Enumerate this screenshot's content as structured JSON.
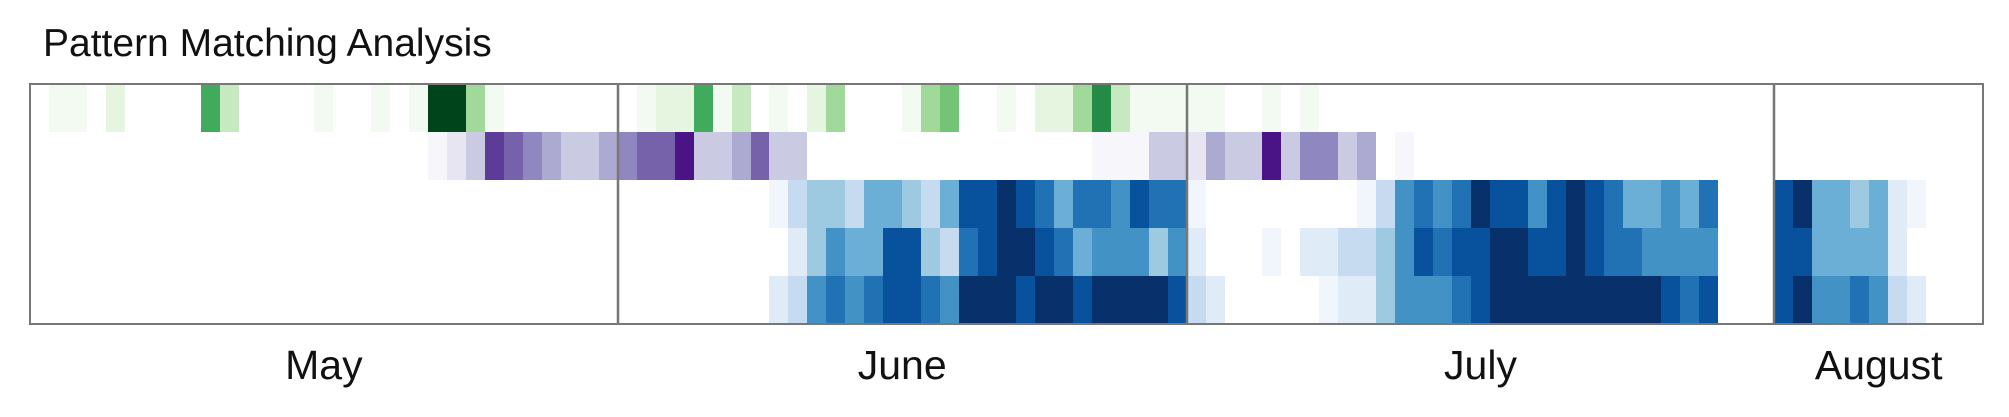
{
  "chart_data": {
    "type": "heatmap",
    "title": "Pattern Matching Analysis",
    "x_unit": "day",
    "x_labels": [
      "May",
      "June",
      "July",
      "August"
    ],
    "colormaps": {
      "green": [
        "#ffffff",
        "#f3faf1",
        "#e5f5e0",
        "#c7e9c0",
        "#a1d99b",
        "#74c476",
        "#41ab5d",
        "#238b45",
        "#006d2c",
        "#00441b"
      ],
      "purple": [
        "#ffffff",
        "#f7f6fb",
        "#e6e5f1",
        "#cbcae3",
        "#adaad1",
        "#8f88c0",
        "#7562ab",
        "#5c3c98",
        "#4a1486"
      ],
      "blue": [
        "#ffffff",
        "#f1f6fd",
        "#dfebf7",
        "#c6dbef",
        "#9ecae1",
        "#6baed6",
        "#4292c6",
        "#2171b5",
        "#08519c",
        "#08306b"
      ]
    },
    "rows": [
      {
        "colormap": "green",
        "range": [
          0,
          9
        ],
        "days": [
          {
            "day": "May 2",
            "value": 1
          },
          {
            "day": "May 3",
            "value": 1
          },
          {
            "day": "May 5",
            "value": 2
          },
          {
            "day": "May 10",
            "value": 6
          },
          {
            "day": "May 11",
            "value": 3
          },
          {
            "day": "May 16",
            "value": 1
          },
          {
            "day": "May 19",
            "value": 1
          },
          {
            "day": "May 21",
            "value": 1
          },
          {
            "day": "May 22",
            "value": 9
          },
          {
            "day": "May 23",
            "value": 9
          },
          {
            "day": "May 24",
            "value": 4
          },
          {
            "day": "May 25",
            "value": 1
          },
          {
            "day": "June 2",
            "value": 1
          },
          {
            "day": "June 3",
            "value": 2
          },
          {
            "day": "June 4",
            "value": 2
          },
          {
            "day": "June 5",
            "value": 6
          },
          {
            "day": "June 6",
            "value": 1
          },
          {
            "day": "June 7",
            "value": 3
          },
          {
            "day": "June 9",
            "value": 1
          },
          {
            "day": "June 11",
            "value": 2
          },
          {
            "day": "June 12",
            "value": 4
          },
          {
            "day": "June 16",
            "value": 1
          },
          {
            "day": "June 17",
            "value": 4
          },
          {
            "day": "June 18",
            "value": 5
          },
          {
            "day": "June 21",
            "value": 1
          },
          {
            "day": "June 23",
            "value": 2
          },
          {
            "day": "June 24",
            "value": 2
          },
          {
            "day": "June 25",
            "value": 4
          },
          {
            "day": "June 26",
            "value": 7
          },
          {
            "day": "June 27",
            "value": 3
          },
          {
            "day": "June 28",
            "value": 1
          },
          {
            "day": "June 29",
            "value": 1
          },
          {
            "day": "June 30",
            "value": 1
          },
          {
            "day": "July 1",
            "value": 1
          },
          {
            "day": "July 2",
            "value": 1
          },
          {
            "day": "July 5",
            "value": 1
          },
          {
            "day": "July 7",
            "value": 1
          }
        ]
      },
      {
        "colormap": "purple",
        "range": [
          0,
          8
        ],
        "days": [
          {
            "day": "May 22",
            "value": 1
          },
          {
            "day": "May 23",
            "value": 2
          },
          {
            "day": "May 24",
            "value": 3
          },
          {
            "day": "May 25",
            "value": 7
          },
          {
            "day": "May 26",
            "value": 6
          },
          {
            "day": "May 27",
            "value": 5
          },
          {
            "day": "May 28",
            "value": 4
          },
          {
            "day": "May 29",
            "value": 3
          },
          {
            "day": "May 30",
            "value": 3
          },
          {
            "day": "May 31",
            "value": 4
          },
          {
            "day": "June 1",
            "value": 5
          },
          {
            "day": "June 2",
            "value": 6
          },
          {
            "day": "June 3",
            "value": 6
          },
          {
            "day": "June 4",
            "value": 8
          },
          {
            "day": "June 5",
            "value": 3
          },
          {
            "day": "June 6",
            "value": 3
          },
          {
            "day": "June 7",
            "value": 4
          },
          {
            "day": "June 8",
            "value": 6
          },
          {
            "day": "June 9",
            "value": 3
          },
          {
            "day": "June 10",
            "value": 3
          },
          {
            "day": "June 26",
            "value": 1
          },
          {
            "day": "June 27",
            "value": 1
          },
          {
            "day": "June 28",
            "value": 1
          },
          {
            "day": "June 29",
            "value": 3
          },
          {
            "day": "June 30",
            "value": 3
          },
          {
            "day": "July 1",
            "value": 2
          },
          {
            "day": "July 2",
            "value": 4
          },
          {
            "day": "July 3",
            "value": 3
          },
          {
            "day": "July 4",
            "value": 3
          },
          {
            "day": "July 5",
            "value": 8
          },
          {
            "day": "July 6",
            "value": 3
          },
          {
            "day": "July 7",
            "value": 5
          },
          {
            "day": "July 8",
            "value": 5
          },
          {
            "day": "July 9",
            "value": 3
          },
          {
            "day": "July 10",
            "value": 4
          },
          {
            "day": "July 12",
            "value": 1
          }
        ]
      },
      {
        "colormap": "blue",
        "range": [
          0,
          9
        ],
        "days": [
          {
            "day": "June 9",
            "value": 1
          },
          {
            "day": "June 10",
            "value": 3
          },
          {
            "day": "June 11",
            "value": 4
          },
          {
            "day": "June 12",
            "value": 4
          },
          {
            "day": "June 13",
            "value": 3
          },
          {
            "day": "June 14",
            "value": 5
          },
          {
            "day": "June 15",
            "value": 5
          },
          {
            "day": "June 16",
            "value": 4
          },
          {
            "day": "June 17",
            "value": 3
          },
          {
            "day": "June 18",
            "value": 5
          },
          {
            "day": "June 19",
            "value": 8
          },
          {
            "day": "June 20",
            "value": 8
          },
          {
            "day": "June 21",
            "value": 9
          },
          {
            "day": "June 22",
            "value": 8
          },
          {
            "day": "June 23",
            "value": 7
          },
          {
            "day": "June 24",
            "value": 5
          },
          {
            "day": "June 25",
            "value": 7
          },
          {
            "day": "June 26",
            "value": 7
          },
          {
            "day": "June 27",
            "value": 6
          },
          {
            "day": "June 28",
            "value": 8
          },
          {
            "day": "June 29",
            "value": 7
          },
          {
            "day": "June 30",
            "value": 7
          },
          {
            "day": "July 1",
            "value": 1
          },
          {
            "day": "July 10",
            "value": 1
          },
          {
            "day": "July 11",
            "value": 3
          },
          {
            "day": "July 12",
            "value": 6
          },
          {
            "day": "July 13",
            "value": 7
          },
          {
            "day": "July 14",
            "value": 6
          },
          {
            "day": "July 15",
            "value": 7
          },
          {
            "day": "July 16",
            "value": 9
          },
          {
            "day": "July 17",
            "value": 8
          },
          {
            "day": "July 18",
            "value": 8
          },
          {
            "day": "July 19",
            "value": 6
          },
          {
            "day": "July 20",
            "value": 8
          },
          {
            "day": "July 21",
            "value": 9
          },
          {
            "day": "July 22",
            "value": 8
          },
          {
            "day": "July 23",
            "value": 7
          },
          {
            "day": "July 24",
            "value": 5
          },
          {
            "day": "July 25",
            "value": 5
          },
          {
            "day": "July 26",
            "value": 6
          },
          {
            "day": "July 27",
            "value": 5
          },
          {
            "day": "July 28",
            "value": 7
          },
          {
            "day": "August 1",
            "value": 8
          },
          {
            "day": "August 2",
            "value": 9
          },
          {
            "day": "August 3",
            "value": 5
          },
          {
            "day": "August 4",
            "value": 5
          },
          {
            "day": "August 5",
            "value": 4
          },
          {
            "day": "August 6",
            "value": 5
          },
          {
            "day": "August 7",
            "value": 2
          },
          {
            "day": "August 8",
            "value": 1
          }
        ]
      },
      {
        "colormap": "blue",
        "range": [
          0,
          9
        ],
        "days": [
          {
            "day": "June 10",
            "value": 2
          },
          {
            "day": "June 11",
            "value": 4
          },
          {
            "day": "June 12",
            "value": 6
          },
          {
            "day": "June 13",
            "value": 5
          },
          {
            "day": "June 14",
            "value": 5
          },
          {
            "day": "June 15",
            "value": 8
          },
          {
            "day": "June 16",
            "value": 8
          },
          {
            "day": "June 17",
            "value": 4
          },
          {
            "day": "June 18",
            "value": 3
          },
          {
            "day": "June 19",
            "value": 7
          },
          {
            "day": "June 20",
            "value": 8
          },
          {
            "day": "June 21",
            "value": 9
          },
          {
            "day": "June 22",
            "value": 9
          },
          {
            "day": "June 23",
            "value": 8
          },
          {
            "day": "June 24",
            "value": 7
          },
          {
            "day": "June 25",
            "value": 5
          },
          {
            "day": "June 26",
            "value": 6
          },
          {
            "day": "June 27",
            "value": 6
          },
          {
            "day": "June 28",
            "value": 6
          },
          {
            "day": "June 29",
            "value": 4
          },
          {
            "day": "June 30",
            "value": 6
          },
          {
            "day": "July 1",
            "value": 2
          },
          {
            "day": "July 5",
            "value": 1
          },
          {
            "day": "July 7",
            "value": 2
          },
          {
            "day": "July 8",
            "value": 2
          },
          {
            "day": "July 9",
            "value": 3
          },
          {
            "day": "July 10",
            "value": 3
          },
          {
            "day": "July 11",
            "value": 4
          },
          {
            "day": "July 12",
            "value": 6
          },
          {
            "day": "July 13",
            "value": 8
          },
          {
            "day": "July 14",
            "value": 7
          },
          {
            "day": "July 15",
            "value": 8
          },
          {
            "day": "July 16",
            "value": 8
          },
          {
            "day": "July 17",
            "value": 9
          },
          {
            "day": "July 18",
            "value": 9
          },
          {
            "day": "July 19",
            "value": 8
          },
          {
            "day": "July 20",
            "value": 8
          },
          {
            "day": "July 21",
            "value": 9
          },
          {
            "day": "July 22",
            "value": 8
          },
          {
            "day": "July 23",
            "value": 7
          },
          {
            "day": "July 24",
            "value": 7
          },
          {
            "day": "July 25",
            "value": 6
          },
          {
            "day": "July 26",
            "value": 6
          },
          {
            "day": "July 27",
            "value": 6
          },
          {
            "day": "July 28",
            "value": 6
          },
          {
            "day": "August 1",
            "value": 8
          },
          {
            "day": "August 2",
            "value": 8
          },
          {
            "day": "August 3",
            "value": 5
          },
          {
            "day": "August 4",
            "value": 5
          },
          {
            "day": "August 5",
            "value": 5
          },
          {
            "day": "August 6",
            "value": 5
          },
          {
            "day": "August 7",
            "value": 2
          }
        ]
      },
      {
        "colormap": "blue",
        "range": [
          0,
          9
        ],
        "days": [
          {
            "day": "June 9",
            "value": 2
          },
          {
            "day": "June 10",
            "value": 3
          },
          {
            "day": "June 11",
            "value": 6
          },
          {
            "day": "June 12",
            "value": 7
          },
          {
            "day": "June 13",
            "value": 6
          },
          {
            "day": "June 14",
            "value": 7
          },
          {
            "day": "June 15",
            "value": 8
          },
          {
            "day": "June 16",
            "value": 8
          },
          {
            "day": "June 17",
            "value": 7
          },
          {
            "day": "June 18",
            "value": 6
          },
          {
            "day": "June 19",
            "value": 9
          },
          {
            "day": "June 20",
            "value": 9
          },
          {
            "day": "June 21",
            "value": 9
          },
          {
            "day": "June 22",
            "value": 8
          },
          {
            "day": "June 23",
            "value": 9
          },
          {
            "day": "June 24",
            "value": 9
          },
          {
            "day": "June 25",
            "value": 8
          },
          {
            "day": "June 26",
            "value": 9
          },
          {
            "day": "June 27",
            "value": 9
          },
          {
            "day": "June 28",
            "value": 9
          },
          {
            "day": "June 29",
            "value": 9
          },
          {
            "day": "June 30",
            "value": 8
          },
          {
            "day": "July 1",
            "value": 3
          },
          {
            "day": "July 2",
            "value": 2
          },
          {
            "day": "July 8",
            "value": 1
          },
          {
            "day": "July 9",
            "value": 2
          },
          {
            "day": "July 10",
            "value": 2
          },
          {
            "day": "July 11",
            "value": 4
          },
          {
            "day": "July 12",
            "value": 6
          },
          {
            "day": "July 13",
            "value": 6
          },
          {
            "day": "July 14",
            "value": 6
          },
          {
            "day": "July 15",
            "value": 7
          },
          {
            "day": "July 16",
            "value": 8
          },
          {
            "day": "July 17",
            "value": 9
          },
          {
            "day": "July 18",
            "value": 9
          },
          {
            "day": "July 19",
            "value": 9
          },
          {
            "day": "July 20",
            "value": 9
          },
          {
            "day": "July 21",
            "value": 9
          },
          {
            "day": "July 22",
            "value": 9
          },
          {
            "day": "July 23",
            "value": 9
          },
          {
            "day": "July 24",
            "value": 9
          },
          {
            "day": "July 25",
            "value": 9
          },
          {
            "day": "July 26",
            "value": 8
          },
          {
            "day": "July 27",
            "value": 7
          },
          {
            "day": "July 28",
            "value": 8
          },
          {
            "day": "August 1",
            "value": 8
          },
          {
            "day": "August 2",
            "value": 9
          },
          {
            "day": "August 3",
            "value": 6
          },
          {
            "day": "August 4",
            "value": 6
          },
          {
            "day": "August 5",
            "value": 7
          },
          {
            "day": "August 6",
            "value": 6
          },
          {
            "day": "August 7",
            "value": 3
          },
          {
            "day": "August 8",
            "value": 2
          }
        ]
      }
    ],
    "frame_color": "#777777"
  }
}
